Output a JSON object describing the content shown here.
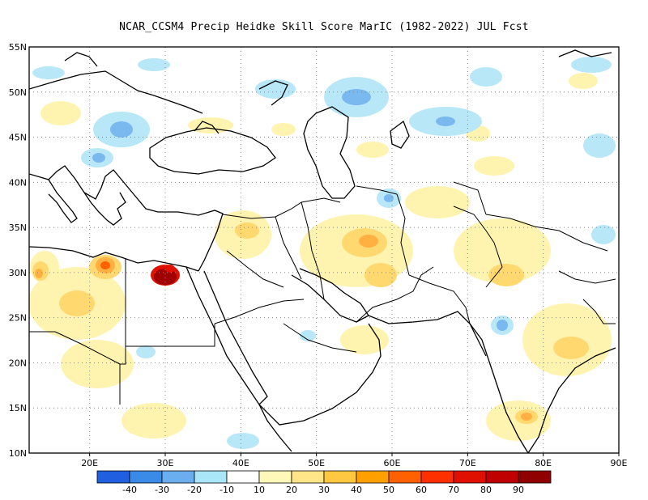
{
  "title": "NCAR_CCSM4 Precip Heidke Skill Score MarIC (1982-2022) JUL Fcst",
  "map": {
    "lon_range": [
      12,
      90
    ],
    "lat_range": [
      10,
      55
    ],
    "grid": "dotted",
    "lat_ticks": [
      "55N",
      "50N",
      "45N",
      "40N",
      "35N",
      "30N",
      "25N",
      "20N",
      "15N",
      "10N"
    ],
    "lon_ticks": [
      "20E",
      "30E",
      "40E",
      "50E",
      "60E",
      "70E",
      "80E",
      "90E"
    ]
  },
  "colorbar": {
    "colors": [
      "#2060e0",
      "#3a8ae8",
      "#6aaef0",
      "#a8e6f8",
      "#ffffff",
      "#fff8b8",
      "#ffe488",
      "#ffc840",
      "#ffa000",
      "#ff6000",
      "#ff3000",
      "#e01000",
      "#c00000",
      "#900000"
    ],
    "labels": [
      "-40",
      "-30",
      "-20",
      "-10",
      "10",
      "20",
      "30",
      "40",
      "50",
      "60",
      "70",
      "80",
      "90"
    ]
  },
  "colors": {
    "land_outline": "#000000",
    "neg_light": "#b8e8f8",
    "neg_mid": "#7ab8f0",
    "pos_light": "#fff3b0",
    "pos_mid": "#ffd870",
    "pos_high": "#ffb040",
    "pos_extreme": "#a00000"
  }
}
